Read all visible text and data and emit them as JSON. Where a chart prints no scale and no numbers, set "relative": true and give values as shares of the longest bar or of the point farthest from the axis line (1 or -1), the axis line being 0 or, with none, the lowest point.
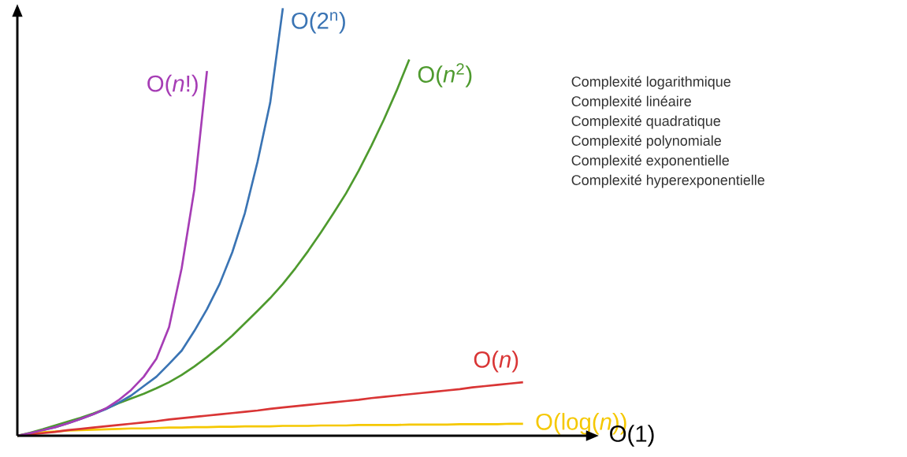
{
  "chart_data": {
    "type": "line",
    "relative": true,
    "xlabel": "O(1)",
    "categories": [
      null,
      null,
      null,
      null,
      null,
      null,
      null,
      null,
      null,
      null,
      null,
      null,
      null,
      null,
      null,
      null,
      null,
      null,
      null,
      null,
      null,
      null,
      null,
      null,
      null,
      null,
      null,
      null,
      null,
      null,
      null,
      null,
      null,
      null,
      null,
      null,
      null,
      null,
      null,
      null,
      null
    ],
    "series": [
      {
        "name": "O(log(*n*))",
        "color": "#f5c800",
        "values": [
          0,
          0.005,
          0.008,
          0.01,
          0.012,
          0.013,
          0.014,
          0.015,
          0.016,
          0.017,
          0.017,
          0.018,
          0.019,
          0.019,
          0.02,
          0.02,
          0.021,
          0.021,
          0.022,
          0.022,
          0.022,
          0.023,
          0.023,
          0.023,
          0.024,
          0.024,
          0.024,
          0.025,
          0.025,
          0.025,
          0.025,
          0.026,
          0.026,
          0.026,
          0.026,
          0.027,
          0.027,
          0.027,
          0.027,
          0.028,
          0.028
        ]
      },
      {
        "name": "O(*n*)",
        "color": "#d93535",
        "values": [
          0,
          0.003,
          0.006,
          0.009,
          0.013,
          0.016,
          0.019,
          0.022,
          0.025,
          0.028,
          0.031,
          0.034,
          0.038,
          0.041,
          0.044,
          0.047,
          0.05,
          0.053,
          0.056,
          0.059,
          0.063,
          0.066,
          0.069,
          0.072,
          0.075,
          0.078,
          0.081,
          0.084,
          0.088,
          0.091,
          0.094,
          0.097,
          0.1,
          0.103,
          0.106,
          0.109,
          0.113,
          0.116,
          0.119,
          0.122,
          0.125
        ]
      },
      {
        "name": "O(*n*$^{2}$)",
        "color": "#4e9a2e",
        "values": [
          0,
          0.007,
          0.015,
          0.024,
          0.033,
          0.042,
          0.052,
          0.063,
          0.076,
          0.087,
          0.098,
          0.111,
          0.125,
          0.142,
          0.162,
          0.184,
          0.208,
          0.234,
          0.263,
          0.292,
          0.322,
          0.355,
          0.392,
          0.432,
          0.475,
          0.52,
          0.567,
          0.62,
          0.678,
          0.74,
          0.807,
          0.88,
          null,
          null,
          null,
          null,
          null,
          null,
          null,
          null,
          null
        ]
      },
      {
        "name": "O(2$^{n}$)",
        "color": "#3a74b4",
        "values": [
          null,
          null,
          0.013,
          0.02,
          0.029,
          0.039,
          0.05,
          0.062,
          0.077,
          0.094,
          0.116,
          0.138,
          0.168,
          0.199,
          0.245,
          0.296,
          0.355,
          0.429,
          0.521,
          0.641,
          0.779,
          1.0,
          null,
          null,
          null,
          null,
          null,
          null,
          null,
          null,
          null,
          null,
          null,
          null,
          null,
          null,
          null,
          null,
          null,
          null,
          null
        ]
      },
      {
        "name": "O(*n*!)",
        "color": "#a63db5",
        "values": [
          0,
          0.006,
          0.013,
          0.02,
          0.029,
          0.039,
          0.05,
          0.064,
          0.083,
          0.107,
          0.138,
          0.18,
          0.254,
          0.392,
          0.576,
          0.853,
          null,
          null,
          null,
          null,
          null,
          null,
          null,
          null,
          null,
          null,
          null,
          null,
          null,
          null,
          null,
          null,
          null,
          null,
          null,
          null,
          null,
          null,
          null,
          null,
          null
        ]
      }
    ],
    "annotations": [
      "Complexité logarithmique",
      "Complexité linéaire",
      "Complexité quadratique",
      "Complexité polynomiale",
      "Complexité exponentielle",
      "Complexité hyperexponentielle"
    ]
  }
}
